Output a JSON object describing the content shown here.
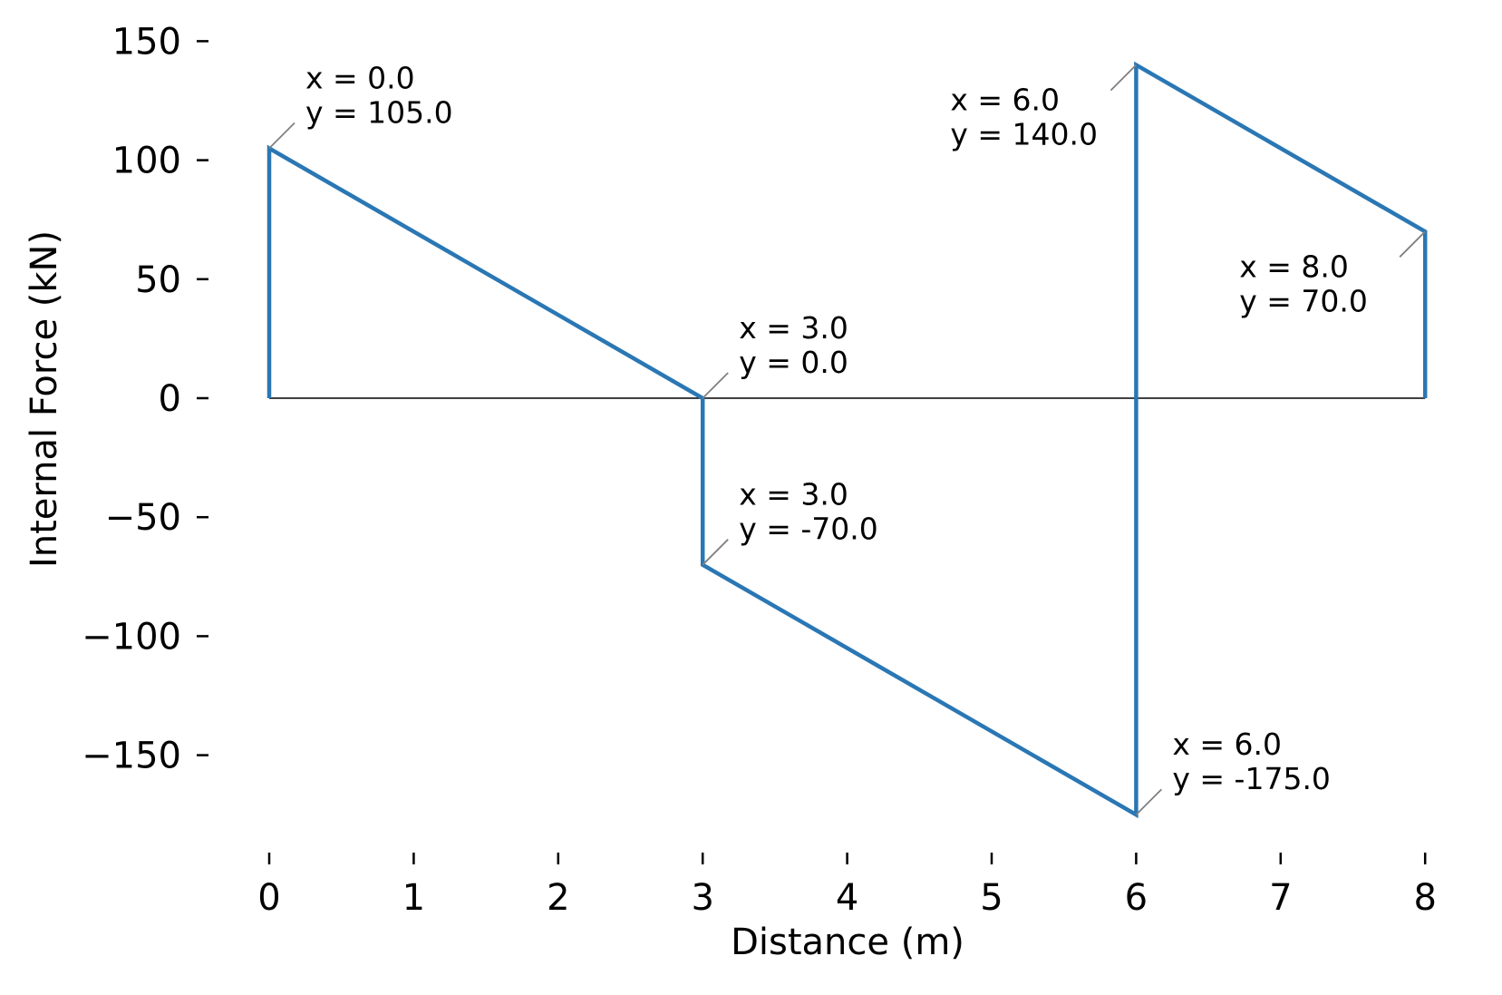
{
  "chart_data": {
    "type": "line",
    "title": "",
    "xlabel": "Distance (m)",
    "ylabel": "Internal Force  (kN)",
    "xlim": [
      -0.4,
      8.4
    ],
    "ylim": [
      -190,
      160
    ],
    "x_ticks": [
      0,
      1,
      2,
      3,
      4,
      5,
      6,
      7,
      8
    ],
    "y_ticks": [
      150,
      100,
      50,
      0,
      -50,
      -100,
      -150
    ],
    "y_tick_labels": [
      "150",
      "100",
      "50",
      "0",
      "−50",
      "−100",
      "−150"
    ],
    "grid": false,
    "line_color": "#2a77b4",
    "baseline": 0,
    "series": [
      {
        "x": [
          0,
          0,
          3,
          3,
          6,
          6,
          8,
          8
        ],
        "y": [
          0,
          105,
          0,
          -70,
          -175,
          140,
          70,
          0
        ]
      }
    ],
    "annotations": [
      {
        "x": 0,
        "y": 105,
        "line1": "x = 0.0",
        "line2": "y = 105.0",
        "side": "right"
      },
      {
        "x": 3,
        "y": 0,
        "line1": "x = 3.0",
        "line2": "y = 0.0",
        "side": "right"
      },
      {
        "x": 3,
        "y": -70,
        "line1": "x = 3.0",
        "line2": "y = -70.0",
        "side": "right"
      },
      {
        "x": 6,
        "y": 140,
        "line1": "x = 6.0",
        "line2": "y = 140.0",
        "side": "left"
      },
      {
        "x": 6,
        "y": -175,
        "line1": "x = 6.0",
        "line2": "y = -175.0",
        "side": "right"
      },
      {
        "x": 8,
        "y": 70,
        "line1": "x = 8.0",
        "line2": "y = 70.0",
        "side": "left"
      }
    ]
  }
}
